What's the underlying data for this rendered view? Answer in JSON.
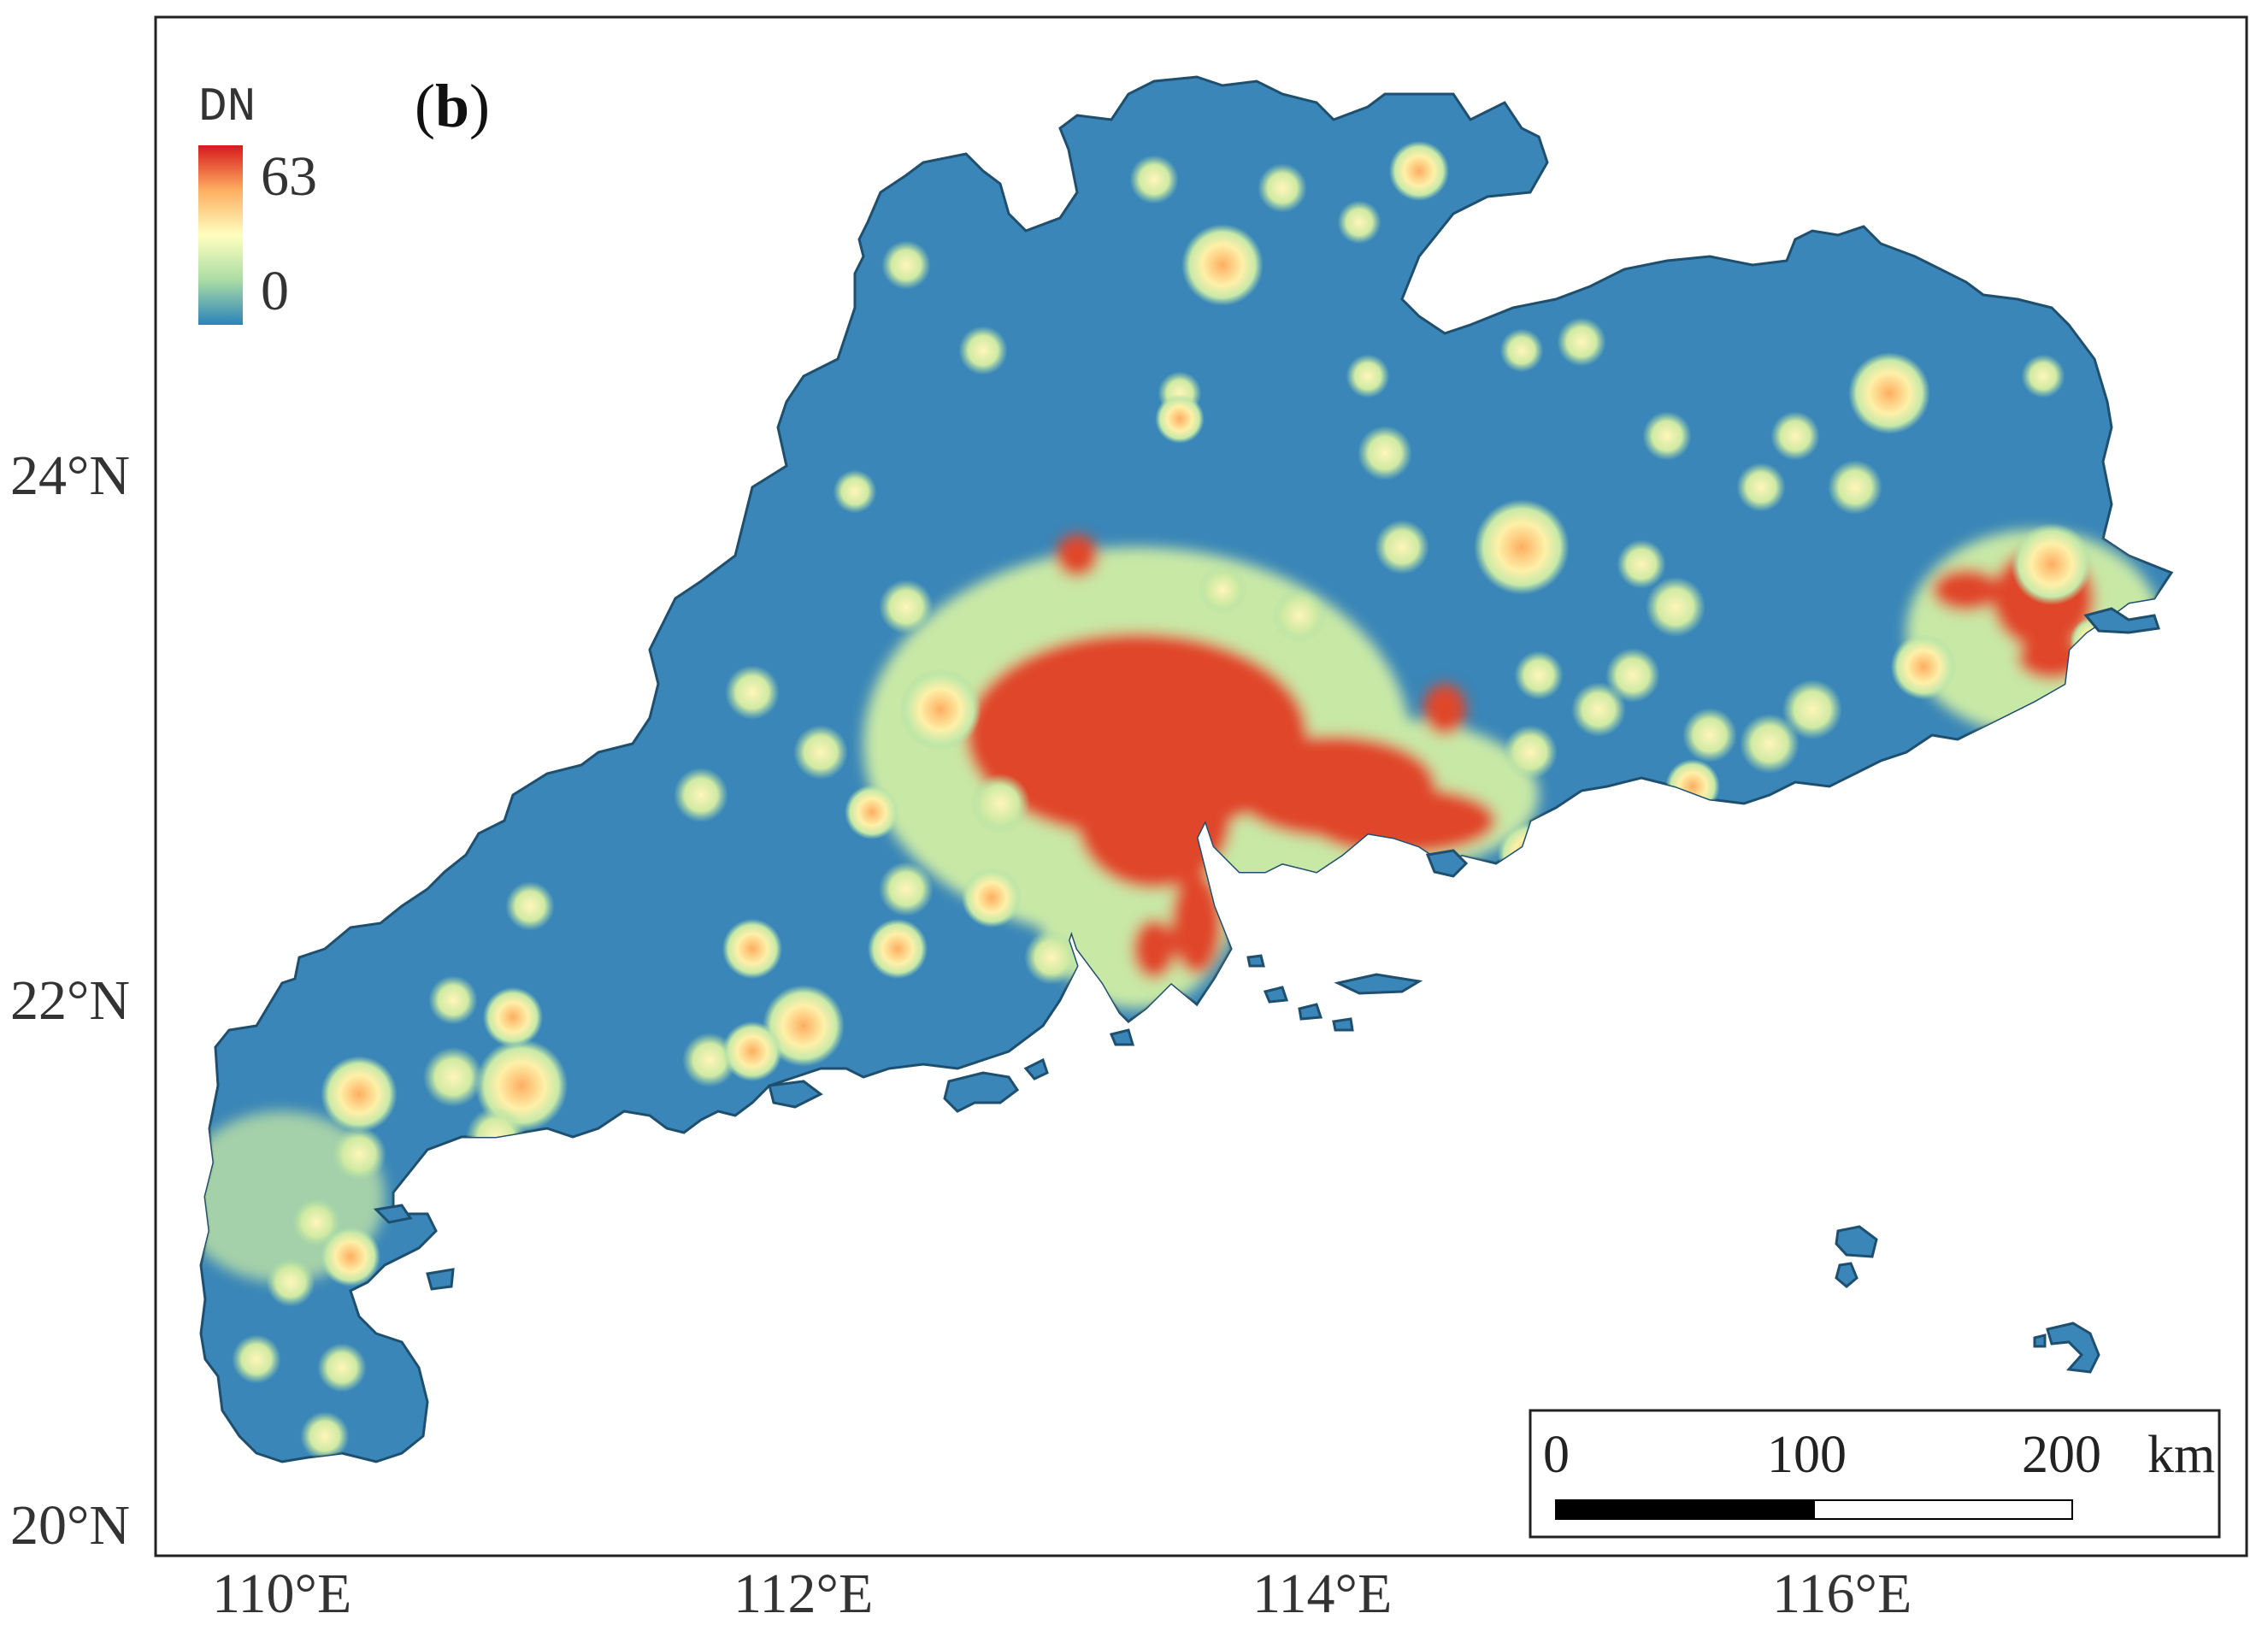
{
  "panel": {
    "label_open": "(",
    "letter": "b",
    "label_close": ")"
  },
  "legend": {
    "title": "DN",
    "max_label": "63",
    "min_label": "0",
    "colors": [
      "#d7191c",
      "#fdae61",
      "#ffffbf",
      "#abdda4",
      "#2b83ba"
    ]
  },
  "axes": {
    "lat_labels": [
      "24°N",
      "22°N",
      "20°N"
    ],
    "lon_labels": [
      "110°E",
      "112°E",
      "114°E",
      "116°E"
    ]
  },
  "scalebar": {
    "ticks": [
      "0",
      "100",
      "200"
    ],
    "unit": "km"
  },
  "colors": {
    "land": "#3a86b8",
    "border": "#1f4f6e",
    "frame": "#222222",
    "hot": "#d7301f",
    "warm": "#fdae61",
    "light": "#f5f5b0"
  }
}
